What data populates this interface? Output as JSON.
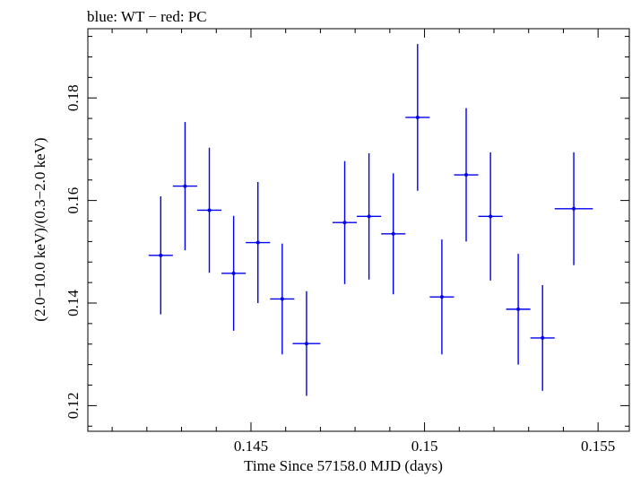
{
  "chart_data": {
    "type": "scatter",
    "title": "blue: WT − red: PC",
    "xlabel": "Time Since 57158.0 MJD (days)",
    "ylabel": "(2.0−10.0 keV)/(0.3−2.0 keV)",
    "xlim": [
      0.1403,
      0.1559
    ],
    "ylim": [
      0.115,
      0.1935
    ],
    "x_ticks": [
      {
        "value": 0.145,
        "label": "0.145"
      },
      {
        "value": 0.15,
        "label": "0.15"
      },
      {
        "value": 0.155,
        "label": "0.155"
      }
    ],
    "y_ticks": [
      {
        "value": 0.12,
        "label": "0.12"
      },
      {
        "value": 0.14,
        "label": "0.14"
      },
      {
        "value": 0.16,
        "label": "0.16"
      },
      {
        "value": 0.18,
        "label": "0.18"
      }
    ],
    "grid": false,
    "color": "#0000ee",
    "series": [
      {
        "points": [
          {
            "x": 0.1424,
            "y": 0.1493,
            "xerr": 0.00035,
            "yerr_lo": 0.0115,
            "yerr_hi": 0.0115
          },
          {
            "x": 0.1431,
            "y": 0.1628,
            "xerr": 0.00035,
            "yerr_lo": 0.0125,
            "yerr_hi": 0.0125
          },
          {
            "x": 0.1438,
            "y": 0.1581,
            "xerr": 0.00035,
            "yerr_lo": 0.0122,
            "yerr_hi": 0.0122
          },
          {
            "x": 0.1445,
            "y": 0.1458,
            "xerr": 0.00035,
            "yerr_lo": 0.0112,
            "yerr_hi": 0.0112
          },
          {
            "x": 0.1452,
            "y": 0.1518,
            "xerr": 0.00035,
            "yerr_lo": 0.0118,
            "yerr_hi": 0.0118
          },
          {
            "x": 0.1459,
            "y": 0.1408,
            "xerr": 0.00035,
            "yerr_lo": 0.0108,
            "yerr_hi": 0.0108
          },
          {
            "x": 0.1466,
            "y": 0.1321,
            "xerr": 0.0004,
            "yerr_lo": 0.0102,
            "yerr_hi": 0.0102
          },
          {
            "x": 0.1477,
            "y": 0.1557,
            "xerr": 0.00035,
            "yerr_lo": 0.012,
            "yerr_hi": 0.012
          },
          {
            "x": 0.1484,
            "y": 0.1569,
            "xerr": 0.00035,
            "yerr_lo": 0.0123,
            "yerr_hi": 0.0123
          },
          {
            "x": 0.1491,
            "y": 0.1535,
            "xerr": 0.00035,
            "yerr_lo": 0.0118,
            "yerr_hi": 0.0118
          },
          {
            "x": 0.1498,
            "y": 0.1762,
            "xerr": 0.00035,
            "yerr_lo": 0.0143,
            "yerr_hi": 0.0143
          },
          {
            "x": 0.1505,
            "y": 0.1412,
            "xerr": 0.00035,
            "yerr_lo": 0.0112,
            "yerr_hi": 0.0112
          },
          {
            "x": 0.1512,
            "y": 0.165,
            "xerr": 0.00035,
            "yerr_lo": 0.013,
            "yerr_hi": 0.013
          },
          {
            "x": 0.1519,
            "y": 0.1569,
            "xerr": 0.00035,
            "yerr_lo": 0.0125,
            "yerr_hi": 0.0125
          },
          {
            "x": 0.1527,
            "y": 0.1388,
            "xerr": 0.00035,
            "yerr_lo": 0.0108,
            "yerr_hi": 0.0108
          },
          {
            "x": 0.1534,
            "y": 0.1332,
            "xerr": 0.00035,
            "yerr_lo": 0.0103,
            "yerr_hi": 0.0103
          },
          {
            "x": 0.1543,
            "y": 0.1584,
            "xerr": 0.00055,
            "yerr_lo": 0.011,
            "yerr_hi": 0.011
          }
        ]
      }
    ]
  }
}
